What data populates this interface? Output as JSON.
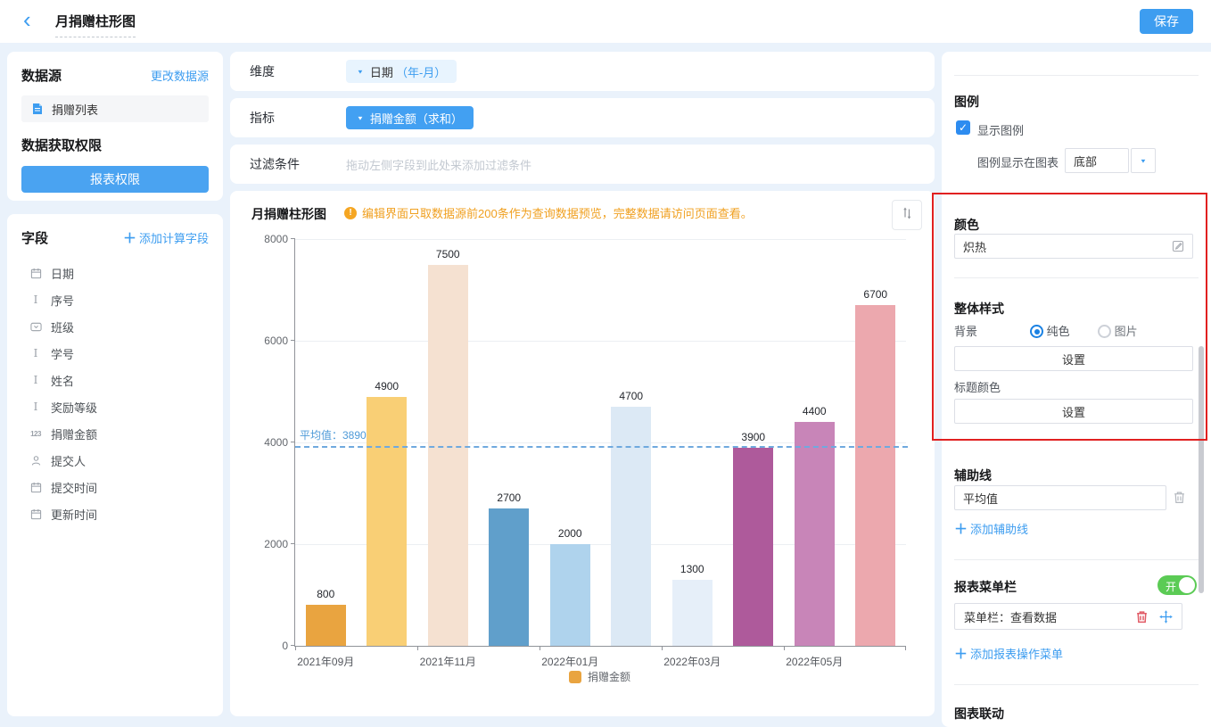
{
  "header": {
    "title": "月捐赠柱形图",
    "save_label": "保存"
  },
  "left_panel": {
    "datasource": {
      "title": "数据源",
      "change_link": "更改数据源",
      "name": "捐赠列表",
      "permission_title": "数据获取权限",
      "permission_button": "报表权限"
    },
    "fields": {
      "title": "字段",
      "add_link": "添加计算字段",
      "items": [
        {
          "icon": "calendar",
          "label": "日期"
        },
        {
          "icon": "text",
          "label": "序号"
        },
        {
          "icon": "select",
          "label": "班级"
        },
        {
          "icon": "text",
          "label": "学号"
        },
        {
          "icon": "text",
          "label": "姓名"
        },
        {
          "icon": "text",
          "label": "奖励等级"
        },
        {
          "icon": "number",
          "label": "捐赠金额"
        },
        {
          "icon": "person",
          "label": "提交人"
        },
        {
          "icon": "calendar",
          "label": "提交时间"
        },
        {
          "icon": "calendar",
          "label": "更新时间"
        }
      ]
    }
  },
  "config": {
    "dimension_label": "维度",
    "dimension_value": "日期",
    "dimension_suffix": "（年-月）",
    "metric_label": "指标",
    "metric_value": "捐赠金额（求和）",
    "filter_label": "过滤条件",
    "filter_placeholder": "拖动左侧字段到此处来添加过滤条件"
  },
  "chart_card": {
    "title": "月捐赠柱形图",
    "notice": "编辑界面只取数据源前200条作为查询数据预览，完整数据请访问页面查看。"
  },
  "chart_data": {
    "type": "bar",
    "title": "月捐赠柱形图",
    "values": [
      800,
      4900,
      7500,
      2700,
      2000,
      4700,
      1300,
      3900,
      4400,
      6700
    ],
    "bar_colors": [
      "#E9A440",
      "#F9CF75",
      "#F5E1D1",
      "#609FCB",
      "#AFD3ED",
      "#DCE9F5",
      "#E6EFF9",
      "#AE5A9B",
      "#C885B8",
      "#ECA8AE"
    ],
    "x_tick_labels": [
      "2021年09月",
      "2021年11月",
      "2022年01月",
      "2022年03月",
      "2022年05月"
    ],
    "y_ticks": [
      0,
      2000,
      4000,
      6000,
      8000
    ],
    "ylim": [
      0,
      8000
    ],
    "grid": true,
    "legend": {
      "label": "捐赠金额",
      "color": "#E9A440",
      "position": "bottom"
    },
    "reference_line": {
      "value": 3890,
      "label": "平均值：3890"
    }
  },
  "right_panel": {
    "legend": {
      "title": "图例",
      "show_label": "显示图例",
      "checked": true,
      "position_label": "图例显示在图表",
      "position_value": "底部"
    },
    "color": {
      "title": "颜色",
      "theme_name": "炽热"
    },
    "style": {
      "title": "整体样式",
      "background_label": "背景",
      "solid_option": "纯色",
      "image_option": "图片",
      "selected": "纯色",
      "set_button": "设置",
      "title_color_label": "标题颜色",
      "title_set_button": "设置"
    },
    "aux_line": {
      "title": "辅助线",
      "item": "平均值",
      "add_link": "添加辅助线"
    },
    "menu": {
      "title": "报表菜单栏",
      "toggle_label": "开",
      "item": "菜单栏：查看数据",
      "add_link": "添加报表操作菜单"
    },
    "linkage": {
      "title": "图表联动"
    }
  },
  "colors": {
    "accent": "#3D9DF0",
    "notice_orange": "#F0A020",
    "highlight_red": "#E12020",
    "toggle_green": "#5BCB55",
    "average_line": "#5D9FDB",
    "page_background": "#EAF2FB"
  }
}
